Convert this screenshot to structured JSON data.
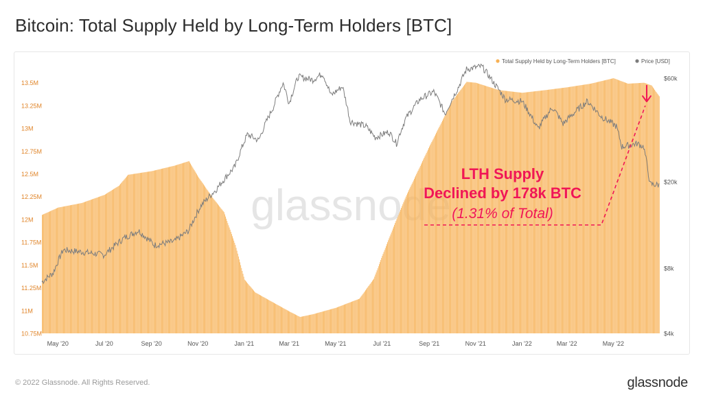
{
  "page": {
    "title": "Bitcoin: Total Supply Held by Long-Term Holders [BTC]",
    "footer": "© 2022 Glassnode. All Rights Reserved.",
    "logo": "glassnode",
    "watermark": "glassnode"
  },
  "colors": {
    "supply": "#f7b155",
    "supply_label": "#e0852a",
    "price": "#7c7c7c",
    "annotation": "#f01656"
  },
  "chart_data": {
    "type": "bar",
    "title": "Bitcoin: Total Supply Held by Long-Term Holders [BTC]",
    "x_range": [
      "2020-04-10",
      "2022-07-01"
    ],
    "x_ticks": [
      "May '20",
      "Jul '20",
      "Sep '20",
      "Nov '20",
      "Jan '21",
      "Mar '21",
      "May '21",
      "Jul '21",
      "Sep '21",
      "Nov '21",
      "Jan '22",
      "Mar '22",
      "May '22"
    ],
    "y_left": {
      "ticks": [
        "10.75M",
        "11M",
        "11.25M",
        "11.5M",
        "11.75M",
        "12M",
        "12.25M",
        "12.5M",
        "12.75M",
        "13M",
        "13.25M",
        "13.5M"
      ],
      "range": [
        10750000,
        13550000
      ]
    },
    "y_right": {
      "ticks": [
        "$4k",
        "$8k",
        "$20k",
        "$60k"
      ],
      "scale": "log",
      "range": [
        4000,
        60000
      ]
    },
    "grid": false,
    "legend": {
      "position": "top-right",
      "entries": [
        "Total Supply Held by Long-Term Holders [BTC]",
        "Price [USD]"
      ]
    },
    "series": [
      {
        "name": "Total Supply Held by Long-Term Holders [BTC]",
        "kind": "bar",
        "axis": "left",
        "points": [
          [
            "2020-04-10",
            12050000
          ],
          [
            "2020-05-01",
            12130000
          ],
          [
            "2020-06-01",
            12180000
          ],
          [
            "2020-07-01",
            12270000
          ],
          [
            "2020-07-20",
            12370000
          ],
          [
            "2020-08-01",
            12490000
          ],
          [
            "2020-09-01",
            12530000
          ],
          [
            "2020-10-01",
            12590000
          ],
          [
            "2020-10-20",
            12640000
          ],
          [
            "2020-11-01",
            12470000
          ],
          [
            "2020-11-20",
            12240000
          ],
          [
            "2020-12-05",
            12080000
          ],
          [
            "2020-12-20",
            11720000
          ],
          [
            "2021-01-01",
            11340000
          ],
          [
            "2021-01-15",
            11200000
          ],
          [
            "2021-02-01",
            11120000
          ],
          [
            "2021-03-01",
            10990000
          ],
          [
            "2021-03-15",
            10930000
          ],
          [
            "2021-04-01",
            10960000
          ],
          [
            "2021-05-01",
            11030000
          ],
          [
            "2021-06-01",
            11130000
          ],
          [
            "2021-06-20",
            11350000
          ],
          [
            "2021-07-01",
            11600000
          ],
          [
            "2021-07-15",
            11900000
          ],
          [
            "2021-08-01",
            12250000
          ],
          [
            "2021-09-01",
            12800000
          ],
          [
            "2021-10-01",
            13300000
          ],
          [
            "2021-10-20",
            13510000
          ],
          [
            "2021-11-01",
            13500000
          ],
          [
            "2021-12-01",
            13420000
          ],
          [
            "2022-01-01",
            13390000
          ],
          [
            "2022-02-01",
            13420000
          ],
          [
            "2022-03-01",
            13450000
          ],
          [
            "2022-04-01",
            13490000
          ],
          [
            "2022-05-01",
            13550000
          ],
          [
            "2022-05-20",
            13490000
          ],
          [
            "2022-06-10",
            13500000
          ],
          [
            "2022-06-20",
            13470000
          ],
          [
            "2022-07-01",
            13340000
          ]
        ]
      },
      {
        "name": "Price [USD]",
        "kind": "line",
        "axis": "right",
        "points": [
          [
            "2020-04-10",
            6900
          ],
          [
            "2020-04-25",
            7600
          ],
          [
            "2020-05-08",
            9700
          ],
          [
            "2020-06-01",
            9500
          ],
          [
            "2020-07-01",
            9200
          ],
          [
            "2020-07-27",
            11000
          ],
          [
            "2020-08-15",
            11900
          ],
          [
            "2020-09-05",
            10200
          ],
          [
            "2020-10-01",
            10600
          ],
          [
            "2020-10-20",
            11900
          ],
          [
            "2020-11-05",
            15500
          ],
          [
            "2020-11-25",
            18400
          ],
          [
            "2020-12-20",
            23500
          ],
          [
            "2021-01-05",
            33000
          ],
          [
            "2021-01-20",
            31000
          ],
          [
            "2021-02-08",
            44000
          ],
          [
            "2021-02-21",
            57000
          ],
          [
            "2021-03-01",
            46000
          ],
          [
            "2021-03-13",
            61000
          ],
          [
            "2021-04-01",
            59000
          ],
          [
            "2021-04-14",
            63000
          ],
          [
            "2021-04-25",
            50000
          ],
          [
            "2021-05-10",
            55000
          ],
          [
            "2021-05-20",
            38000
          ],
          [
            "2021-06-10",
            36000
          ],
          [
            "2021-06-22",
            32000
          ],
          [
            "2021-07-10",
            34000
          ],
          [
            "2021-07-20",
            30000
          ],
          [
            "2021-08-01",
            39000
          ],
          [
            "2021-08-20",
            48000
          ],
          [
            "2021-09-07",
            52000
          ],
          [
            "2021-09-22",
            41000
          ],
          [
            "2021-10-10",
            55000
          ],
          [
            "2021-10-20",
            66000
          ],
          [
            "2021-11-09",
            68000
          ],
          [
            "2021-11-25",
            57000
          ],
          [
            "2021-12-10",
            48000
          ],
          [
            "2022-01-01",
            47000
          ],
          [
            "2022-01-22",
            35000
          ],
          [
            "2022-02-10",
            44000
          ],
          [
            "2022-02-24",
            37000
          ],
          [
            "2022-03-28",
            47000
          ],
          [
            "2022-04-15",
            40000
          ],
          [
            "2022-05-05",
            36000
          ],
          [
            "2022-05-12",
            29000
          ],
          [
            "2022-06-01",
            30000
          ],
          [
            "2022-06-10",
            29000
          ],
          [
            "2022-06-18",
            19500
          ],
          [
            "2022-07-01",
            19300
          ]
        ]
      }
    ],
    "annotation": {
      "line1": "LTH Supply",
      "line2": "Declined by 178k BTC",
      "line3": "(1.31% of Total)"
    }
  }
}
